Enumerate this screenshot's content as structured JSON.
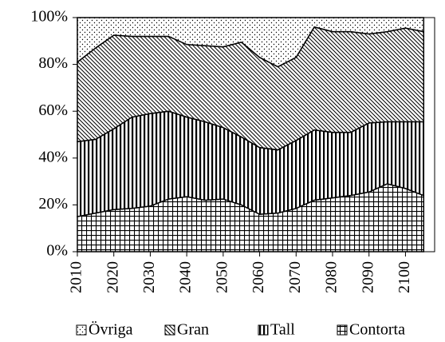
{
  "chart_data": {
    "type": "stacked_area",
    "x": [
      2010,
      2015,
      2020,
      2025,
      2030,
      2035,
      2040,
      2045,
      2050,
      2055,
      2060,
      2065,
      2070,
      2075,
      2080,
      2085,
      2090,
      2095,
      2100,
      2105
    ],
    "xlim": [
      2010,
      2108
    ],
    "xticks": [
      2010,
      2020,
      2030,
      2040,
      2050,
      2060,
      2070,
      2080,
      2090,
      2100
    ],
    "ylim": [
      0,
      100
    ],
    "yticks": [
      {
        "value": 0,
        "label": "0%"
      },
      {
        "value": 20,
        "label": "20%"
      },
      {
        "value": 40,
        "label": "40%"
      },
      {
        "value": 60,
        "label": "60%"
      },
      {
        "value": 80,
        "label": "80%"
      },
      {
        "value": 100,
        "label": "100%"
      }
    ],
    "series": [
      {
        "name": "Contorta",
        "color": "#000000",
        "pattern": "grid",
        "values": [
          15,
          16.5,
          18,
          18.5,
          19.5,
          22.5,
          23.5,
          22,
          22.5,
          20,
          16,
          16.5,
          18.5,
          22,
          23,
          24,
          25.5,
          29,
          27,
          24
        ]
      },
      {
        "name": "Tall",
        "color": "#000000",
        "pattern": "vertical",
        "values": [
          32,
          31.5,
          34.5,
          39,
          39.5,
          37.5,
          34,
          33.5,
          30.5,
          29,
          28.5,
          27,
          29,
          30,
          28,
          27,
          29.5,
          26.5,
          28.5,
          31.5
        ]
      },
      {
        "name": "Gran",
        "color": "#000000",
        "pattern": "diagonal",
        "values": [
          34,
          39,
          40,
          34.5,
          33,
          32,
          31,
          32.5,
          34.5,
          40.5,
          38.5,
          35.5,
          35.5,
          44,
          43,
          43,
          38,
          38.5,
          40,
          38.5
        ]
      },
      {
        "name": "Övriga",
        "color": "#000000",
        "pattern": "dots",
        "values": [
          19,
          13,
          7.5,
          8,
          8,
          8,
          11.5,
          12,
          12.5,
          10.5,
          17,
          21,
          17,
          4,
          6,
          6,
          7,
          6,
          4.5,
          6
        ]
      }
    ],
    "legend": "bottom"
  }
}
